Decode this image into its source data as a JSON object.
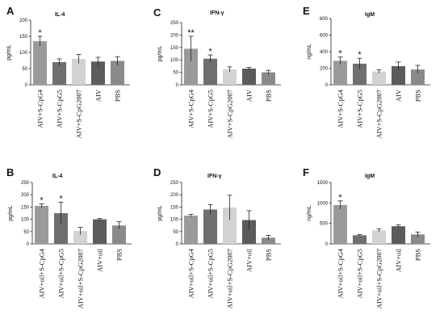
{
  "colors": [
    "#9a9a9a",
    "#6f6f6f",
    "#d2d2d2",
    "#5c5c5c",
    "#8a8a8a"
  ],
  "chart_data": [
    {
      "type": "bar",
      "letter": "A",
      "title": "IL-4",
      "ylabel": "pg/mL",
      "ylim": [
        0,
        200
      ],
      "yticks": [
        "0",
        "50",
        "100",
        "150",
        "200"
      ],
      "categories": [
        "AIV+S-CpG4",
        "AIV+S-CpG5",
        "AIV+S-CpG2007",
        "AIV",
        "PBS"
      ],
      "values": [
        135,
        70,
        80,
        72,
        74
      ],
      "errors": [
        15,
        10,
        14,
        13,
        13
      ],
      "stars": [
        "*",
        "",
        "",
        "",
        ""
      ]
    },
    {
      "type": "bar",
      "letter": "C",
      "title": "IFN-γ",
      "ylabel": "pg/mL",
      "ylim": [
        0,
        250
      ],
      "yticks": [
        "0",
        "50",
        "100",
        "150",
        "200",
        "250"
      ],
      "categories": [
        "AIV+S-CpG4",
        "AIV+S-CpG5",
        "AIV+S-CpG2007",
        "AIV",
        "PBS"
      ],
      "values": [
        145,
        105,
        62,
        65,
        50
      ],
      "errors": [
        50,
        15,
        10,
        5,
        8
      ],
      "stars": [
        "**",
        "*",
        "",
        "",
        ""
      ]
    },
    {
      "type": "bar",
      "letter": "E",
      "title": "IgM",
      "ylabel": "ng/mL",
      "ylim": [
        0,
        800
      ],
      "yticks": [
        "0",
        "200",
        "400",
        "600",
        "800"
      ],
      "categories": [
        "AIV+S-CpG4",
        "AIV+S-CpG5",
        "AIV+S-CpG2007",
        "AIV",
        "PBS"
      ],
      "values": [
        290,
        255,
        160,
        225,
        185
      ],
      "errors": [
        45,
        65,
        20,
        50,
        50
      ],
      "stars": [
        "*",
        "*",
        "",
        "",
        ""
      ]
    },
    {
      "type": "bar",
      "letter": "B",
      "title": "IL-4",
      "ylabel": "pg/mL",
      "ylim": [
        0,
        250
      ],
      "yticks": [
        "0",
        "50",
        "100",
        "150",
        "200",
        "250"
      ],
      "categories": [
        "AIV+oil+S-CpG4",
        "AIV+oil+S-CpG5",
        "AIV+oil+S-CpG2007",
        "AIV+oil",
        "PBS"
      ],
      "values": [
        155,
        125,
        52,
        100,
        75
      ],
      "errors": [
        8,
        45,
        15,
        3,
        15
      ],
      "stars": [
        "*",
        "*",
        "",
        "",
        ""
      ]
    },
    {
      "type": "bar",
      "letter": "D",
      "title": "IFN-γ",
      "ylabel": "pg/mL",
      "ylim": [
        0,
        250
      ],
      "yticks": [
        "0",
        "50",
        "100",
        "150",
        "200",
        "250"
      ],
      "categories": [
        "AIV+oil+S-CpG4",
        "AIV+oil+S-CpG5",
        "AIV+oil+S-CpG2007",
        "AIV+oil",
        "PBS"
      ],
      "values": [
        115,
        140,
        148,
        97,
        25
      ],
      "errors": [
        5,
        20,
        50,
        38,
        10
      ],
      "stars": [
        "",
        "",
        "",
        "",
        ""
      ]
    },
    {
      "type": "bar",
      "letter": "F",
      "title": "IgM",
      "ylabel": "ng/mL",
      "ylim": [
        0,
        1500
      ],
      "yticks": [
        "0",
        "500",
        "1000",
        "1500"
      ],
      "categories": [
        "AIV+oil+S-CpG4",
        "AIV+oil+S-CpG5",
        "AIV+oil+S-CpG2007",
        "AIV+oil",
        "PBS"
      ],
      "values": [
        950,
        210,
        330,
        430,
        230
      ],
      "errors": [
        100,
        15,
        40,
        35,
        60
      ],
      "stars": [
        "*",
        "",
        "",
        "",
        ""
      ]
    }
  ]
}
